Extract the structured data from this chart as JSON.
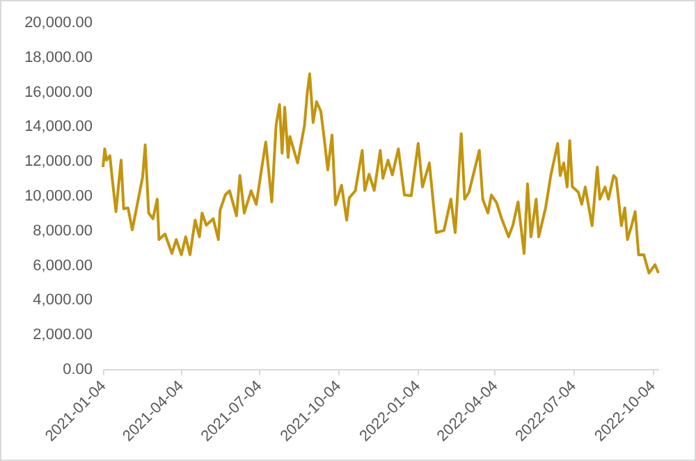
{
  "chart_data": {
    "type": "line",
    "x": [
      "2021-01-04",
      "2021-01-06",
      "2021-01-08",
      "2021-01-12",
      "2021-01-15",
      "2021-01-19",
      "2021-01-25",
      "2021-01-28",
      "2021-02-02",
      "2021-02-07",
      "2021-02-19",
      "2021-02-22",
      "2021-02-26",
      "2021-03-03",
      "2021-03-08",
      "2021-03-10",
      "2021-03-17",
      "2021-03-25",
      "2021-03-30",
      "2021-04-05",
      "2021-04-10",
      "2021-04-15",
      "2021-04-21",
      "2021-04-26",
      "2021-04-29",
      "2021-05-04",
      "2021-05-12",
      "2021-05-18",
      "2021-05-20",
      "2021-05-26",
      "2021-05-31",
      "2021-06-08",
      "2021-06-12",
      "2021-06-17",
      "2021-06-25",
      "2021-07-01",
      "2021-07-06",
      "2021-07-12",
      "2021-07-19",
      "2021-07-24",
      "2021-07-28",
      "2021-07-31",
      "2021-08-03",
      "2021-08-07",
      "2021-08-09",
      "2021-08-18",
      "2021-08-26",
      "2021-08-29",
      "2021-09-01",
      "2021-09-05",
      "2021-09-09",
      "2021-09-14",
      "2021-09-18",
      "2021-09-22",
      "2021-09-27",
      "2021-10-01",
      "2021-10-08",
      "2021-10-14",
      "2021-10-17",
      "2021-10-24",
      "2021-11-01",
      "2021-11-04",
      "2021-11-09",
      "2021-11-15",
      "2021-11-22",
      "2021-11-25",
      "2021-12-01",
      "2021-12-06",
      "2021-12-13",
      "2021-12-20",
      "2021-12-28",
      "2022-01-05",
      "2022-01-10",
      "2022-01-18",
      "2022-01-26",
      "2022-02-04",
      "2022-02-12",
      "2022-02-17",
      "2022-02-24",
      "2022-02-28",
      "2022-03-05",
      "2022-03-17",
      "2022-03-21",
      "2022-03-27",
      "2022-03-31",
      "2022-04-06",
      "2022-04-12",
      "2022-04-20",
      "2022-04-25",
      "2022-05-01",
      "2022-05-08",
      "2022-05-12",
      "2022-05-16",
      "2022-05-22",
      "2022-05-25",
      "2022-06-02",
      "2022-06-08",
      "2022-06-16",
      "2022-06-19",
      "2022-06-23",
      "2022-06-27",
      "2022-06-30",
      "2022-07-03",
      "2022-07-10",
      "2022-07-14",
      "2022-07-18",
      "2022-07-26",
      "2022-08-01",
      "2022-08-04",
      "2022-08-10",
      "2022-08-14",
      "2022-08-20",
      "2022-08-23",
      "2022-08-29",
      "2022-09-02",
      "2022-09-05",
      "2022-09-10",
      "2022-09-14",
      "2022-09-18",
      "2022-09-24",
      "2022-09-30",
      "2022-10-07",
      "2022-10-11"
    ],
    "series": [
      {
        "color": "#c3950e",
        "values": [
          11650,
          12700,
          12050,
          12300,
          10850,
          9080,
          12050,
          9240,
          9300,
          8030,
          11080,
          12930,
          9000,
          8670,
          9800,
          7470,
          7790,
          6670,
          7470,
          6590,
          7630,
          6590,
          8590,
          7630,
          9000,
          8300,
          8670,
          7470,
          9160,
          10040,
          10280,
          8840,
          11160,
          9000,
          10280,
          9500,
          11160,
          13090,
          9640,
          14060,
          15260,
          12450,
          15100,
          12210,
          13410,
          11890,
          14060,
          15820,
          17030,
          14220,
          15420,
          14860,
          13250,
          11490,
          13490,
          9480,
          10600,
          8590,
          9880,
          10280,
          12610,
          10300,
          11240,
          10300,
          12610,
          11000,
          12050,
          11200,
          12700,
          10040,
          10000,
          13010,
          10500,
          11890,
          7870,
          8000,
          9800,
          7870,
          13570,
          9800,
          10200,
          12610,
          9800,
          9000,
          10040,
          9600,
          8670,
          7630,
          8300,
          9640,
          6670,
          10680,
          7630,
          9800,
          7630,
          9300,
          11160,
          13010,
          11160,
          11890,
          10500,
          13170,
          10520,
          10200,
          9500,
          10500,
          8270,
          11650,
          9800,
          10500,
          9800,
          11160,
          11000,
          8270,
          9300,
          7470,
          8300,
          9080,
          6590,
          6600,
          5540,
          6020,
          5540
        ]
      }
    ],
    "xlim": [
      "2021-01-04",
      "2022-10-11"
    ],
    "xticks": [
      "2021-01-04",
      "2021-04-04",
      "2021-07-04",
      "2021-10-04",
      "2022-01-04",
      "2022-04-04",
      "2022-07-04",
      "2022-10-04"
    ],
    "ylim": [
      0,
      20000
    ],
    "yticks": [
      {
        "value": 0,
        "label": "0.00"
      },
      {
        "value": 2000,
        "label": "2,000.00"
      },
      {
        "value": 4000,
        "label": "4,000.00"
      },
      {
        "value": 6000,
        "label": "6,000.00"
      },
      {
        "value": 8000,
        "label": "8,000.00"
      },
      {
        "value": 10000,
        "label": "10,000.00"
      },
      {
        "value": 12000,
        "label": "12,000.00"
      },
      {
        "value": 14000,
        "label": "14,000.00"
      },
      {
        "value": 16000,
        "label": "16,000.00"
      },
      {
        "value": 18000,
        "label": "18,000.00"
      },
      {
        "value": 20000,
        "label": "20,000.00"
      }
    ],
    "grid": false,
    "line_style": "solid",
    "marker": "none"
  }
}
